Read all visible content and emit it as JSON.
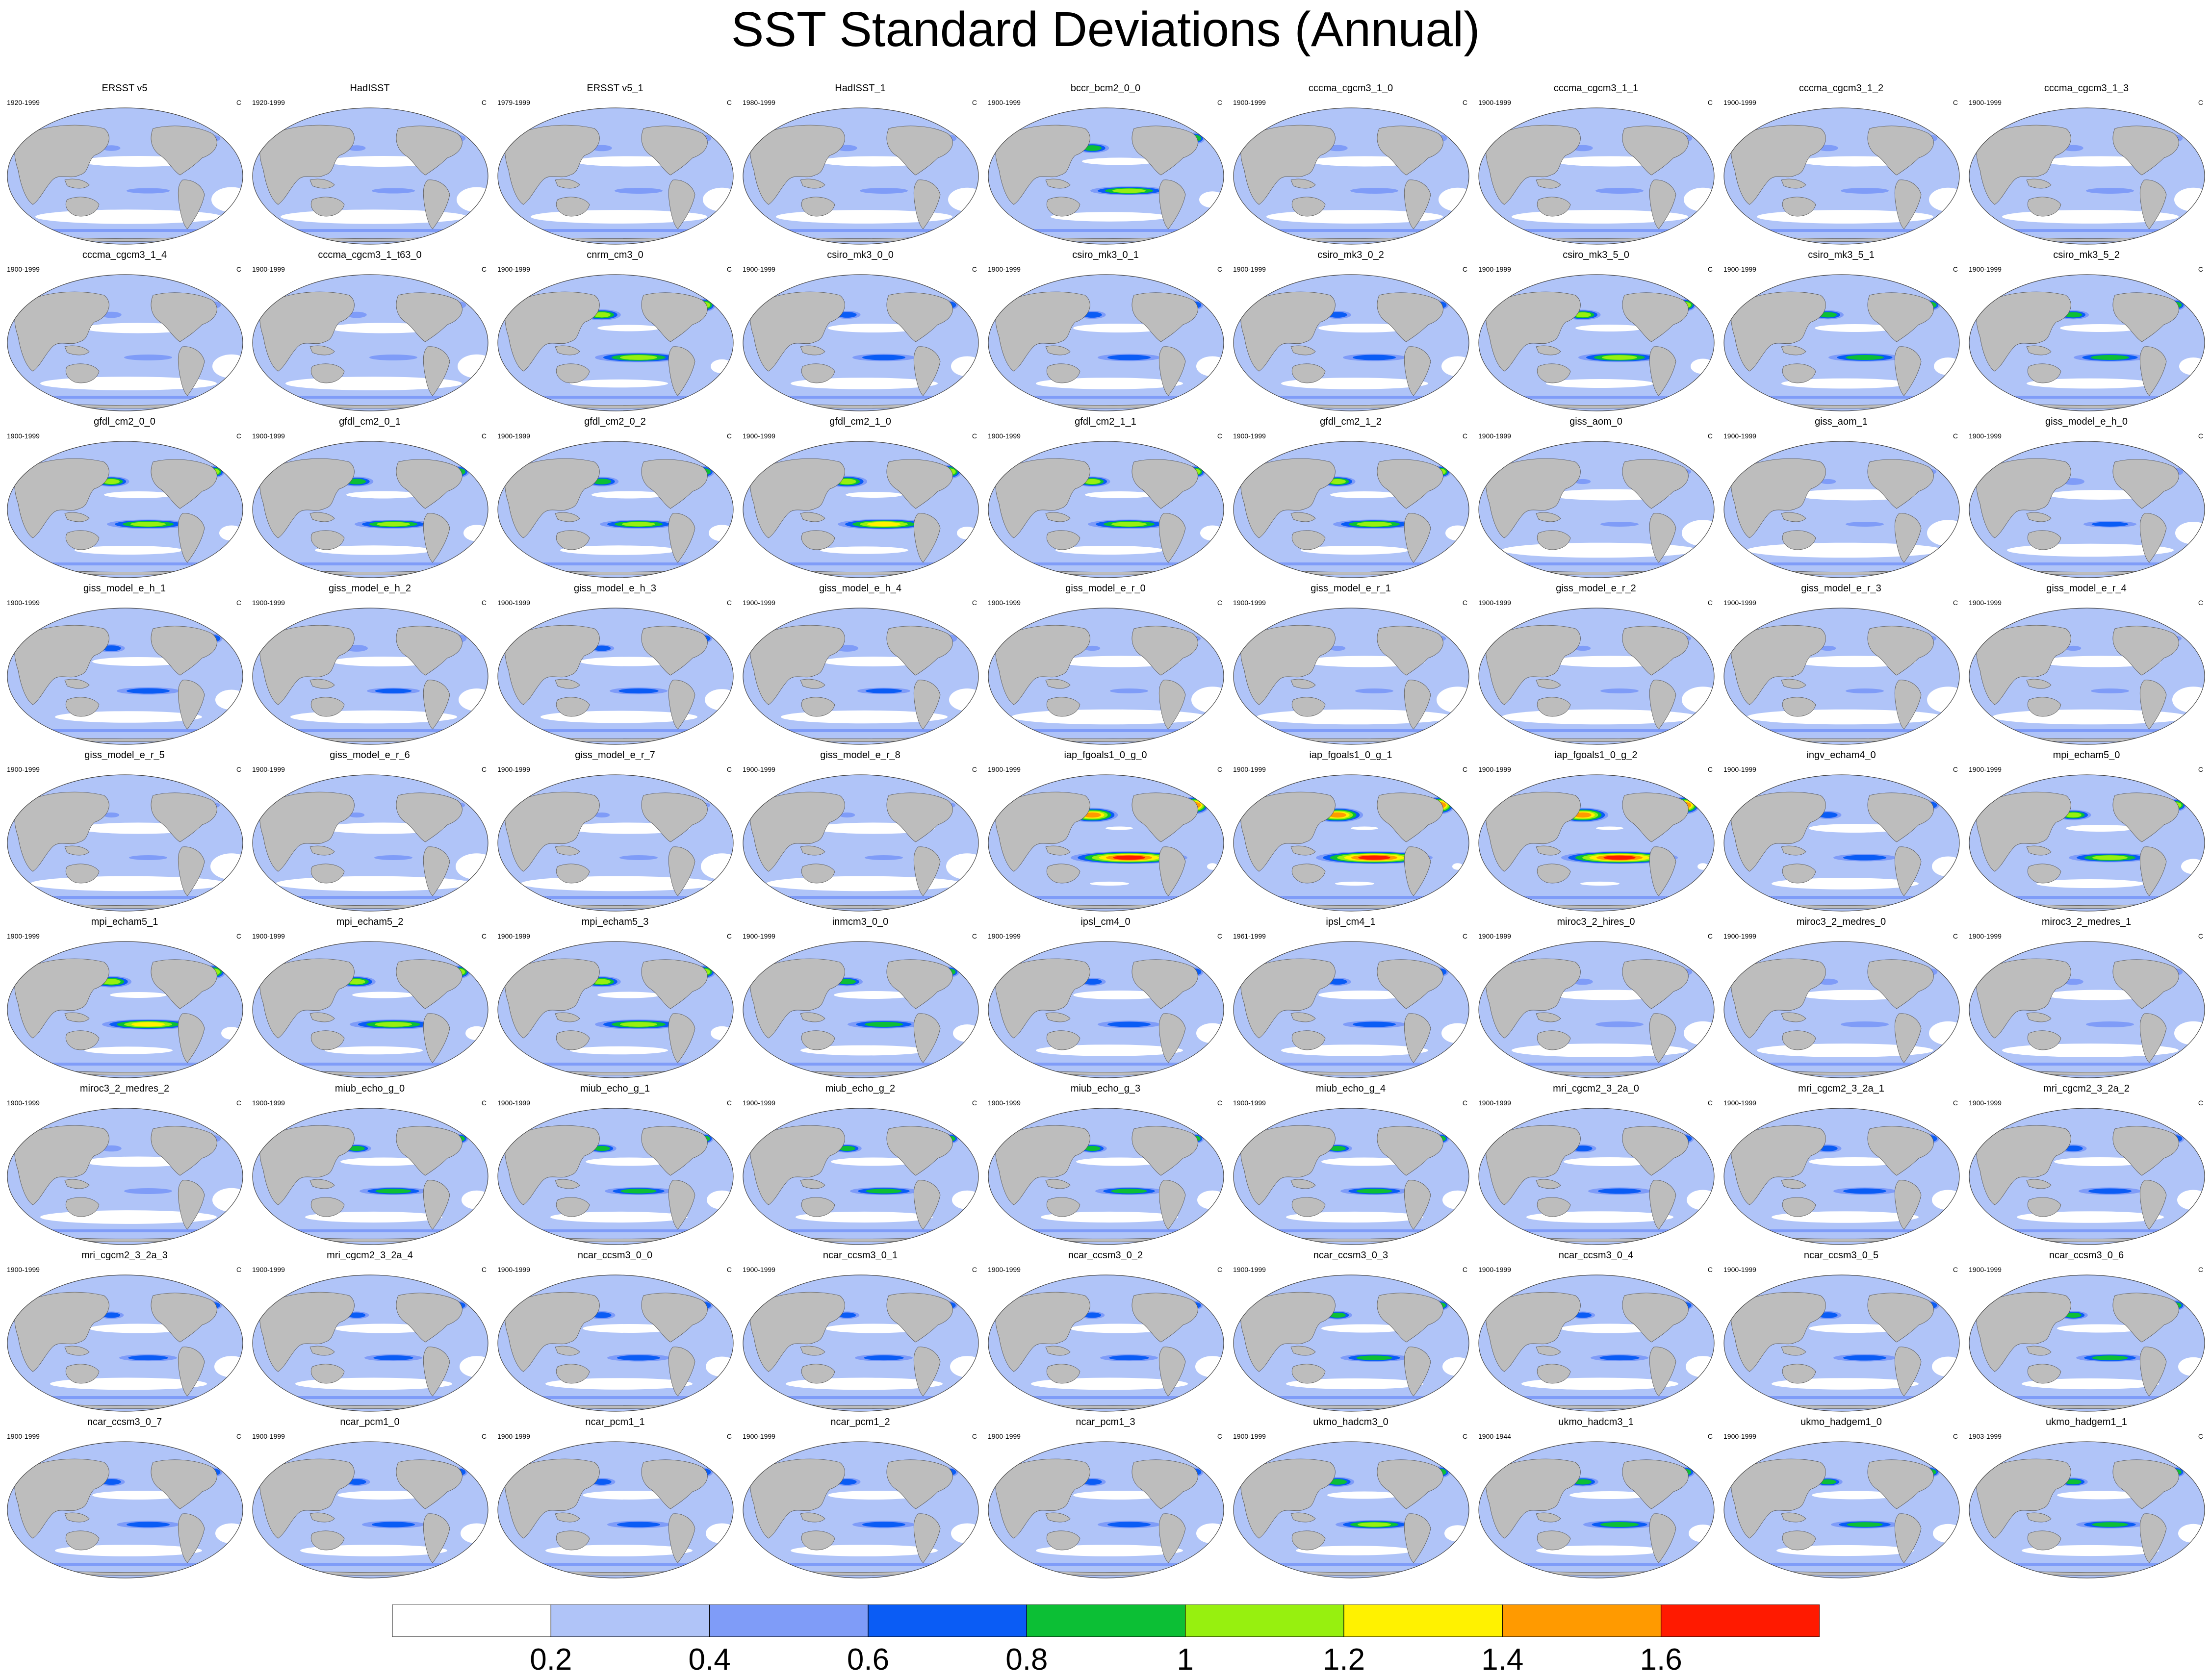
{
  "title": "SST Standard Deviations (Annual)",
  "units": "C",
  "panels": [
    {
      "name": "ERSST v5",
      "years": "1920-1999",
      "level": 0.1
    },
    {
      "name": "HadISST",
      "years": "1920-1999",
      "level": 0.1
    },
    {
      "name": "ERSST v5_1",
      "years": "1979-1999",
      "level": 0.15
    },
    {
      "name": "HadISST_1",
      "years": "1980-1999",
      "level": 0.15
    },
    {
      "name": "bccr_bcm2_0_0",
      "years": "1900-1999",
      "level": 0.45
    },
    {
      "name": "cccma_cgcm3_1_0",
      "years": "1900-1999",
      "level": 0.15
    },
    {
      "name": "cccma_cgcm3_1_1",
      "years": "1900-1999",
      "level": 0.15
    },
    {
      "name": "cccma_cgcm3_1_2",
      "years": "1900-1999",
      "level": 0.15
    },
    {
      "name": "cccma_cgcm3_1_3",
      "years": "1900-1999",
      "level": 0.15
    },
    {
      "name": "cccma_cgcm3_1_4",
      "years": "1900-1999",
      "level": 0.15
    },
    {
      "name": "cccma_cgcm3_1_t63_0",
      "years": "1900-1999",
      "level": 0.15
    },
    {
      "name": "cnrm_cm3_0",
      "years": "1900-1999",
      "level": 0.55
    },
    {
      "name": "csiro_mk3_0_0",
      "years": "1900-1999",
      "level": 0.3
    },
    {
      "name": "csiro_mk3_0_1",
      "years": "1900-1999",
      "level": 0.3
    },
    {
      "name": "csiro_mk3_0_2",
      "years": "1900-1999",
      "level": 0.3
    },
    {
      "name": "csiro_mk3_5_0",
      "years": "1900-1999",
      "level": 0.5
    },
    {
      "name": "csiro_mk3_5_1",
      "years": "1900-1999",
      "level": 0.4
    },
    {
      "name": "csiro_mk3_5_2",
      "years": "1900-1999",
      "level": 0.4
    },
    {
      "name": "gfdl_cm2_0_0",
      "years": "1900-1999",
      "level": 0.5
    },
    {
      "name": "gfdl_cm2_0_1",
      "years": "1900-1999",
      "level": 0.45
    },
    {
      "name": "gfdl_cm2_0_2",
      "years": "1900-1999",
      "level": 0.45
    },
    {
      "name": "gfdl_cm2_1_0",
      "years": "1900-1999",
      "level": 0.6
    },
    {
      "name": "gfdl_cm2_1_1",
      "years": "1900-1999",
      "level": 0.5
    },
    {
      "name": "gfdl_cm2_1_2",
      "years": "1900-1999",
      "level": 0.5
    },
    {
      "name": "giss_aom_0",
      "years": "1900-1999",
      "level": 0.05
    },
    {
      "name": "giss_aom_1",
      "years": "1900-1999",
      "level": 0.05
    },
    {
      "name": "giss_model_e_h_0",
      "years": "1900-1999",
      "level": 0.2
    },
    {
      "name": "giss_model_e_h_1",
      "years": "1900-1999",
      "level": 0.3
    },
    {
      "name": "giss_model_e_h_2",
      "years": "1900-1999",
      "level": 0.2
    },
    {
      "name": "giss_model_e_h_3",
      "years": "1900-1999",
      "level": 0.25
    },
    {
      "name": "giss_model_e_h_4",
      "years": "1900-1999",
      "level": 0.2
    },
    {
      "name": "giss_model_e_r_0",
      "years": "1900-1999",
      "level": 0.05
    },
    {
      "name": "giss_model_e_r_1",
      "years": "1900-1999",
      "level": 0.05
    },
    {
      "name": "giss_model_e_r_2",
      "years": "1900-1999",
      "level": 0.05
    },
    {
      "name": "giss_model_e_r_3",
      "years": "1900-1999",
      "level": 0.05
    },
    {
      "name": "giss_model_e_r_4",
      "years": "1900-1999",
      "level": 0.05
    },
    {
      "name": "giss_model_e_r_5",
      "years": "1900-1999",
      "level": 0.05
    },
    {
      "name": "giss_model_e_r_6",
      "years": "1900-1999",
      "level": 0.05
    },
    {
      "name": "giss_model_e_r_7",
      "years": "1900-1999",
      "level": 0.05
    },
    {
      "name": "giss_model_e_r_8",
      "years": "1900-1999",
      "level": 0.05
    },
    {
      "name": "iap_fgoals1_0_g_0",
      "years": "1900-1999",
      "level": 0.85
    },
    {
      "name": "iap_fgoals1_0_g_1",
      "years": "1900-1999",
      "level": 0.85
    },
    {
      "name": "iap_fgoals1_0_g_2",
      "years": "1900-1999",
      "level": 0.85
    },
    {
      "name": "ingv_echam4_0",
      "years": "1900-1999",
      "level": 0.3
    },
    {
      "name": "mpi_echam5_0",
      "years": "1900-1999",
      "level": 0.5
    },
    {
      "name": "mpi_echam5_1",
      "years": "1900-1999",
      "level": 0.6
    },
    {
      "name": "mpi_echam5_2",
      "years": "1900-1999",
      "level": 0.55
    },
    {
      "name": "mpi_echam5_3",
      "years": "1900-1999",
      "level": 0.55
    },
    {
      "name": "inmcm3_0_0",
      "years": "1900-1999",
      "level": 0.4
    },
    {
      "name": "ipsl_cm4_0",
      "years": "1900-1999",
      "level": 0.3
    },
    {
      "name": "ipsl_cm4_1",
      "years": "1961-1999",
      "level": 0.3
    },
    {
      "name": "miroc3_2_hires_0",
      "years": "1900-1999",
      "level": 0.15
    },
    {
      "name": "miroc3_2_medres_0",
      "years": "1900-1999",
      "level": 0.15
    },
    {
      "name": "miroc3_2_medres_1",
      "years": "1900-1999",
      "level": 0.15
    },
    {
      "name": "miroc3_2_medres_2",
      "years": "1900-1999",
      "level": 0.15
    },
    {
      "name": "miub_echo_g_0",
      "years": "1900-1999",
      "level": 0.35
    },
    {
      "name": "miub_echo_g_1",
      "years": "1900-1999",
      "level": 0.35
    },
    {
      "name": "miub_echo_g_2",
      "years": "1900-1999",
      "level": 0.35
    },
    {
      "name": "miub_echo_g_3",
      "years": "1900-1999",
      "level": 0.35
    },
    {
      "name": "miub_echo_g_4",
      "years": "1900-1999",
      "level": 0.35
    },
    {
      "name": "mri_cgcm2_3_2a_0",
      "years": "1900-1999",
      "level": 0.3
    },
    {
      "name": "mri_cgcm2_3_2a_1",
      "years": "1900-1999",
      "level": 0.3
    },
    {
      "name": "mri_cgcm2_3_2a_2",
      "years": "1900-1999",
      "level": 0.3
    },
    {
      "name": "mri_cgcm2_3_2a_3",
      "years": "1900-1999",
      "level": 0.25
    },
    {
      "name": "mri_cgcm2_3_2a_4",
      "years": "1900-1999",
      "level": 0.25
    },
    {
      "name": "ncar_ccsm3_0_0",
      "years": "1900-1999",
      "level": 0.3
    },
    {
      "name": "ncar_ccsm3_0_1",
      "years": "1900-1999",
      "level": 0.25
    },
    {
      "name": "ncar_ccsm3_0_2",
      "years": "1900-1999",
      "level": 0.25
    },
    {
      "name": "ncar_ccsm3_0_3",
      "years": "1900-1999",
      "level": 0.35
    },
    {
      "name": "ncar_ccsm3_0_4",
      "years": "1900-1999",
      "level": 0.25
    },
    {
      "name": "ncar_ccsm3_0_5",
      "years": "1900-1999",
      "level": 0.3
    },
    {
      "name": "ncar_ccsm3_0_6",
      "years": "1900-1999",
      "level": 0.35
    },
    {
      "name": "ncar_ccsm3_0_7",
      "years": "1900-1999",
      "level": 0.3
    },
    {
      "name": "ncar_pcm1_0",
      "years": "1900-1999",
      "level": 0.3
    },
    {
      "name": "ncar_pcm1_1",
      "years": "1900-1999",
      "level": 0.3
    },
    {
      "name": "ncar_pcm1_2",
      "years": "1900-1999",
      "level": 0.3
    },
    {
      "name": "ncar_pcm1_3",
      "years": "1900-1999",
      "level": 0.3
    },
    {
      "name": "ukmo_hadcm3_0",
      "years": "1900-1999",
      "level": 0.45
    },
    {
      "name": "ukmo_hadcm3_1",
      "years": "1900-1944",
      "level": 0.4
    },
    {
      "name": "ukmo_hadgem1_0",
      "years": "1900-1999",
      "level": 0.35
    },
    {
      "name": "ukmo_hadgem1_1",
      "years": "1903-1999",
      "level": 0.35
    }
  ],
  "colorbar": {
    "colors": [
      "#ffffff",
      "#b0c4f8",
      "#7f9cf8",
      "#0a5cf5",
      "#0cbf35",
      "#97f00f",
      "#fff200",
      "#ff9a00",
      "#ff1a00"
    ],
    "tick_labels": [
      "0.2",
      "0.4",
      "0.6",
      "0.8",
      "1",
      "1.2",
      "1.4",
      "1.6"
    ]
  },
  "land_color": "#bdbdbd"
}
